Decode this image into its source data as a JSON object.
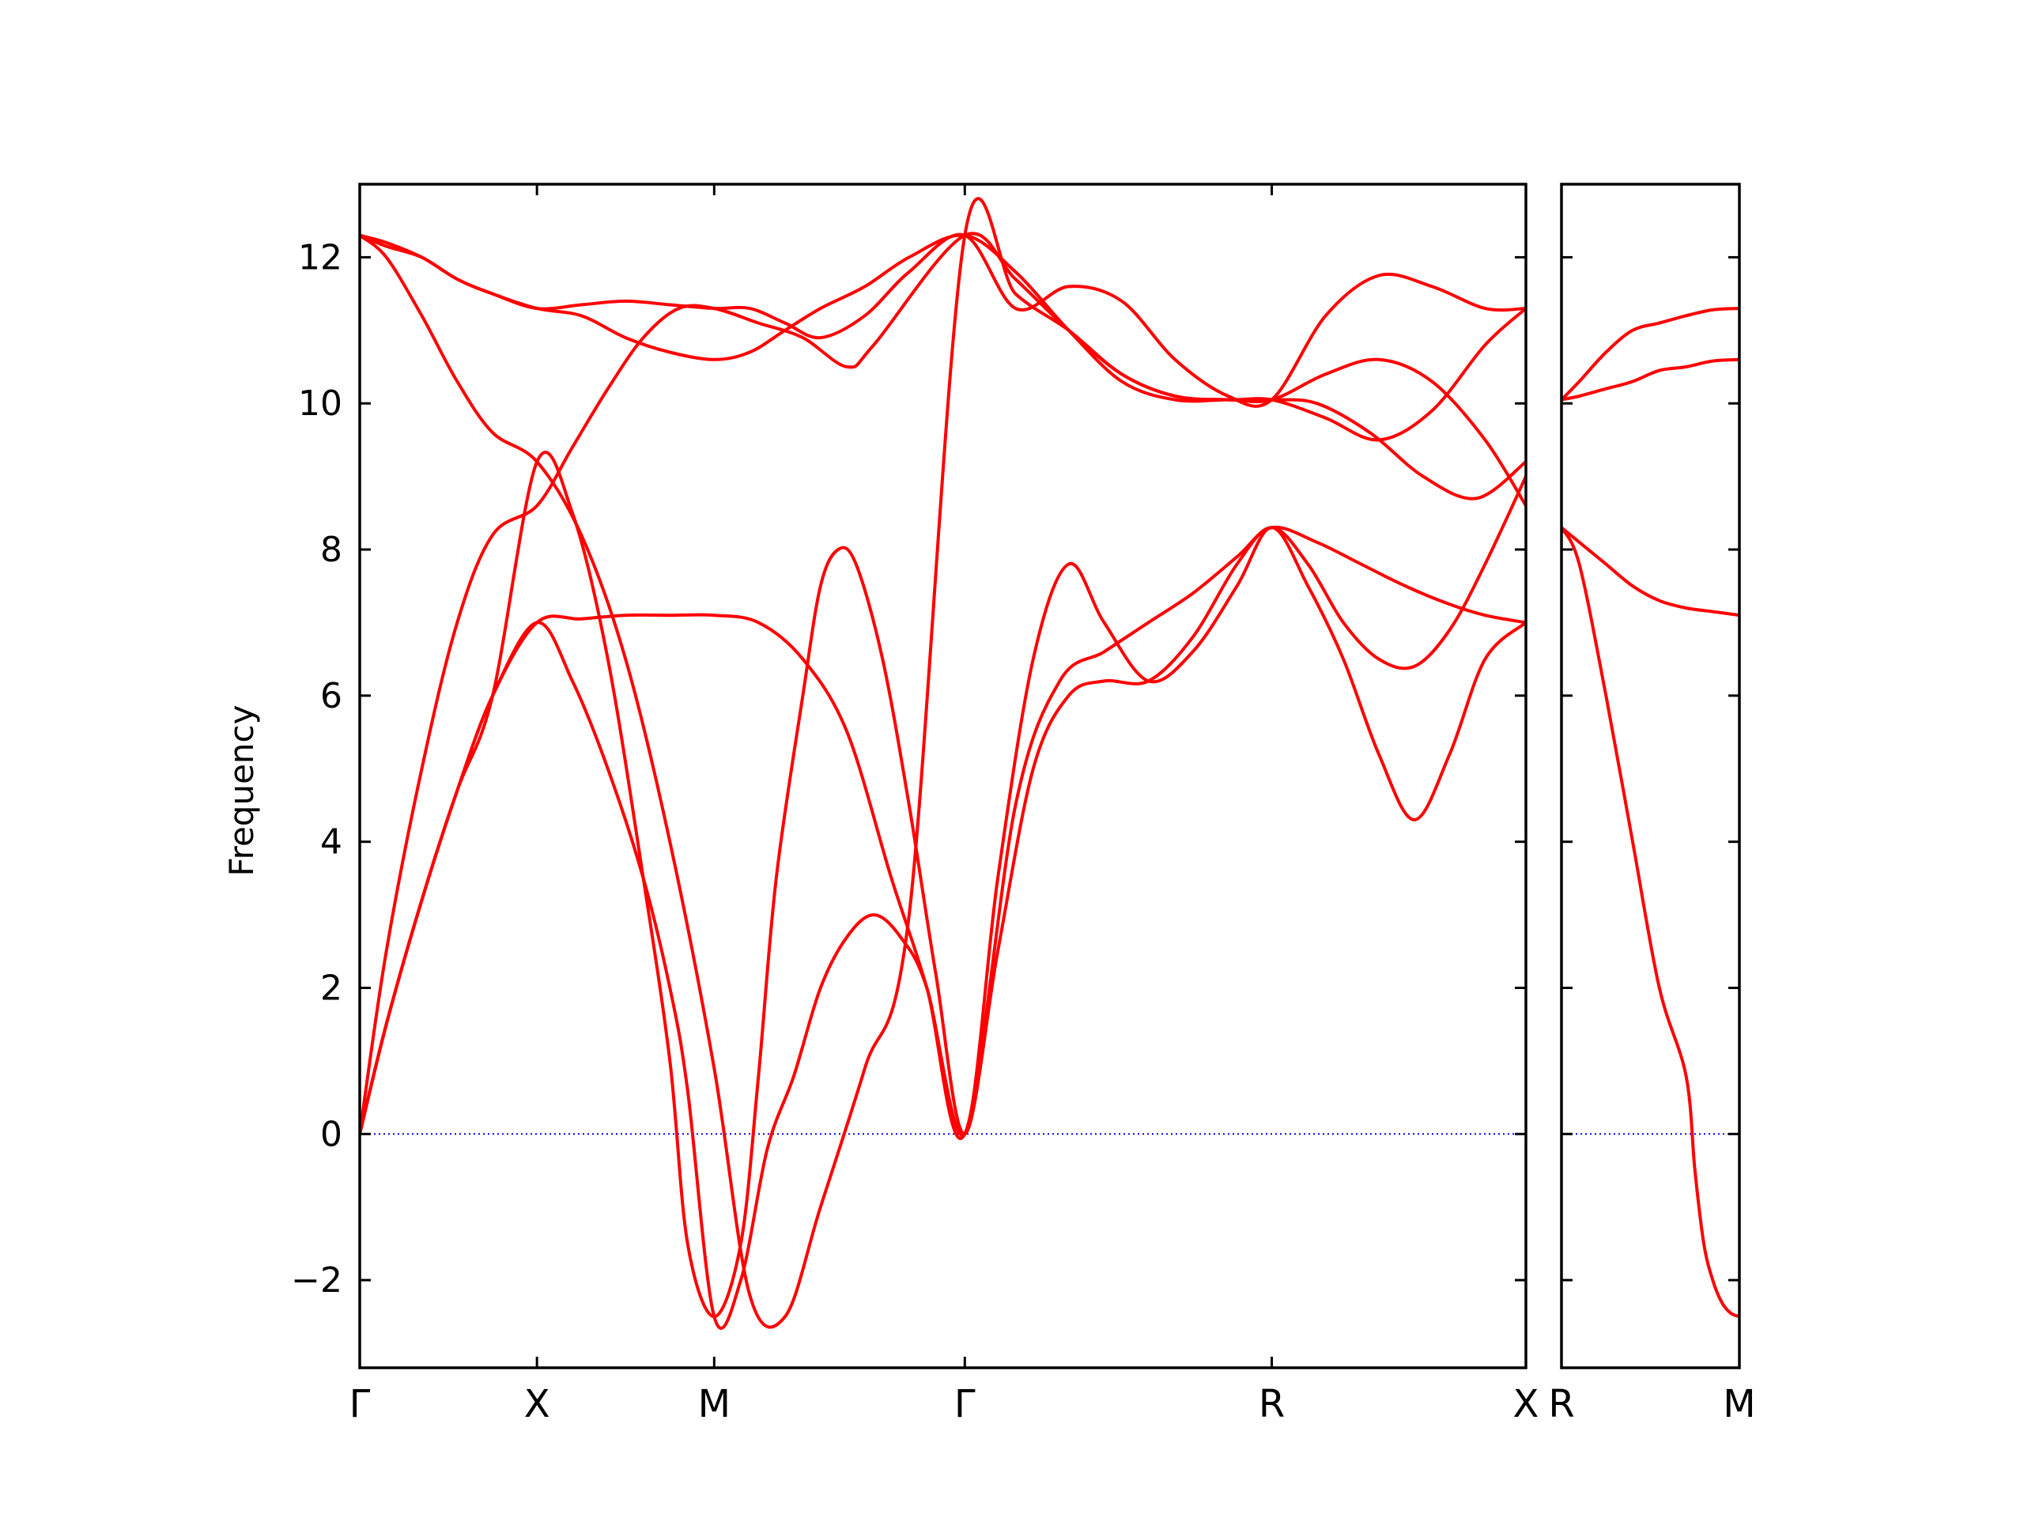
{
  "chart_data": {
    "type": "line",
    "ylabel": "Frequency",
    "ylim": [
      -3.2,
      13.0
    ],
    "yticks": [
      -2,
      0,
      2,
      4,
      6,
      8,
      10,
      12
    ],
    "ytick_labels": [
      "−2",
      "0",
      "2",
      "4",
      "6",
      "8",
      "10",
      "12"
    ],
    "band_color": "#ff0000",
    "zero_line_color": "#0000ff",
    "panels": [
      {
        "xlim": [
          0,
          6.58
        ],
        "xticks": [
          0,
          1.0,
          2.0,
          3.414,
          5.146,
          6.58
        ],
        "xtick_labels": [
          "Γ",
          "X",
          "M",
          "Γ",
          "R",
          "X"
        ],
        "series": [
          {
            "x": [
              0,
              0.15,
              0.35,
              0.55,
              0.75,
              1.0,
              1.25,
              1.5,
              1.75,
              2.0,
              2.2,
              2.4,
              2.6,
              2.85,
              3.1,
              3.414,
              3.7,
              4.0,
              4.3,
              4.6,
              4.9,
              5.146,
              5.45,
              5.75,
              6.05,
              6.35,
              6.58
            ],
            "y": [
              12.3,
              12.2,
              12.0,
              11.7,
              11.5,
              11.3,
              11.35,
              11.4,
              11.35,
              11.3,
              11.3,
              11.1,
              10.9,
              11.2,
              11.8,
              12.3,
              11.3,
              11.6,
              11.4,
              10.6,
              10.1,
              10.05,
              11.2,
              11.75,
              11.6,
              11.3,
              11.3
            ]
          },
          {
            "x": [
              0,
              0.15,
              0.35,
              0.55,
              0.75,
              1.0,
              1.25,
              1.5,
              1.75,
              2.0,
              2.2,
              2.4,
              2.6,
              2.85,
              3.1,
              3.414,
              3.7,
              4.0,
              4.3,
              4.6,
              4.9,
              5.146,
              5.45,
              5.75,
              6.05,
              6.35,
              6.58
            ],
            "y": [
              12.3,
              12.15,
              12.0,
              11.7,
              11.5,
              11.3,
              11.2,
              10.9,
              10.7,
              10.6,
              10.7,
              11.0,
              11.3,
              11.6,
              12.0,
              12.3,
              11.8,
              11.0,
              10.3,
              10.05,
              10.05,
              10.05,
              10.4,
              10.6,
              10.3,
              9.5,
              8.6
            ]
          },
          {
            "x": [
              0,
              0.15,
              0.35,
              0.55,
              0.75,
              1.0,
              1.25,
              1.5,
              1.75,
              2.0,
              2.2,
              2.4,
              2.6,
              2.85,
              3.1,
              3.414,
              3.7,
              4.0,
              4.3,
              4.6,
              4.9,
              5.146,
              5.45,
              5.75,
              6.05,
              6.35,
              6.58
            ],
            "y": [
              12.3,
              12.0,
              11.2,
              10.3,
              9.6,
              9.2,
              8.2,
              6.5,
              4.0,
              0.9,
              -2.2,
              -2.5,
              -1.0,
              0.9,
              3.0,
              12.3,
              11.5,
              11.0,
              10.4,
              10.1,
              10.05,
              10.05,
              9.8,
              9.5,
              9.9,
              10.8,
              11.3
            ]
          },
          {
            "x": [
              0,
              0.15,
              0.35,
              0.55,
              0.75,
              1.0,
              1.2,
              1.4,
              1.6,
              1.8,
              2.0,
              2.25,
              2.5,
              2.75,
              2.9,
              3.414,
              3.7,
              4.0,
              4.3,
              4.6,
              4.9,
              5.146,
              5.4,
              5.7,
              6.0,
              6.3,
              6.58
            ],
            "y": [
              0,
              2.5,
              5.0,
              7.0,
              8.2,
              8.6,
              9.4,
              10.2,
              10.9,
              11.3,
              11.3,
              11.1,
              10.9,
              10.5,
              10.8,
              12.3,
              11.7,
              11.0,
              10.4,
              10.1,
              10.05,
              10.05,
              10.0,
              9.6,
              9.0,
              8.7,
              9.2
            ]
          },
          {
            "x": [
              0,
              0.15,
              0.35,
              0.55,
              0.75,
              1.0,
              1.25,
              1.5,
              1.75,
              2.0,
              2.25,
              2.5,
              2.75,
              3.0,
              3.2,
              3.414,
              3.7,
              3.95,
              4.2,
              4.45,
              4.7,
              4.95,
              5.146,
              5.4,
              5.65,
              5.9,
              6.15,
              6.35,
              6.58
            ],
            "y": [
              0,
              1.5,
              3.2,
              4.7,
              6.0,
              7.0,
              7.05,
              7.1,
              7.1,
              7.1,
              7.0,
              6.5,
              5.5,
              3.5,
              2.0,
              0,
              4.5,
              6.2,
              6.6,
              7.0,
              7.4,
              7.9,
              8.3,
              8.1,
              7.8,
              7.5,
              7.25,
              7.1,
              7.0
            ]
          },
          {
            "x": [
              0,
              0.15,
              0.35,
              0.55,
              0.75,
              1.0,
              1.2,
              1.4,
              1.6,
              1.75,
              1.85,
              2.0,
              2.15,
              2.3,
              2.45,
              2.6,
              2.75,
              2.9,
              3.05,
              3.2,
              3.414,
              3.6,
              3.8,
              4.0,
              4.2,
              4.45,
              4.7,
              4.95,
              5.146,
              5.35,
              5.55,
              5.75,
              5.95,
              6.15,
              6.35,
              6.58
            ],
            "y": [
              0,
              1.5,
              3.2,
              4.7,
              6.0,
              7.0,
              6.2,
              5.0,
              3.5,
              2.0,
              0.6,
              -2.5,
              -2.0,
              -0.2,
              0.8,
              2.0,
              2.7,
              3.0,
              2.7,
              2.0,
              0,
              3.5,
              6.5,
              7.8,
              7.0,
              6.2,
              6.6,
              7.5,
              8.3,
              7.5,
              6.5,
              5.2,
              4.3,
              5.2,
              6.5,
              7.0
            ]
          },
          {
            "x": [
              0,
              0.15,
              0.35,
              0.55,
              0.75,
              1.0,
              1.2,
              1.4,
              1.6,
              1.75,
              1.85,
              2.0,
              2.15,
              2.25,
              2.35,
              2.5,
              2.6,
              2.7,
              2.8,
              2.95,
              3.1,
              3.25,
              3.414,
              3.6,
              3.8,
              4.0,
              4.2,
              4.45,
              4.7,
              4.95,
              5.146,
              5.35,
              5.55,
              5.75,
              5.95,
              6.15,
              6.35,
              6.58
            ],
            "y": [
              0,
              1.5,
              3.2,
              4.7,
              6.0,
              9.2,
              8.5,
              6.5,
              3.5,
              1.0,
              -1.5,
              -2.5,
              -1.5,
              0.8,
              3.5,
              6.0,
              7.5,
              8.0,
              7.8,
              6.5,
              4.5,
              2.2,
              0,
              2.5,
              5.0,
              6.0,
              6.2,
              6.2,
              6.8,
              7.8,
              8.3,
              7.8,
              7.0,
              6.5,
              6.4,
              6.9,
              7.8,
              9.0
            ]
          }
        ]
      },
      {
        "xlim": [
          0,
          1.0
        ],
        "xticks": [
          0,
          1.0
        ],
        "xtick_labels": [
          "R",
          "M"
        ],
        "series": [
          {
            "x": [
              0,
              0.1,
              0.25,
              0.4,
              0.55,
              0.7,
              0.85,
              1.0
            ],
            "y": [
              10.05,
              10.3,
              10.7,
              11.0,
              11.1,
              11.2,
              11.28,
              11.3
            ]
          },
          {
            "x": [
              0,
              0.1,
              0.25,
              0.4,
              0.55,
              0.7,
              0.85,
              1.0
            ],
            "y": [
              10.05,
              10.1,
              10.2,
              10.3,
              10.45,
              10.5,
              10.58,
              10.6
            ]
          },
          {
            "x": [
              0,
              0.1,
              0.25,
              0.4,
              0.55,
              0.7,
              0.85,
              1.0
            ],
            "y": [
              8.3,
              8.1,
              7.8,
              7.5,
              7.3,
              7.2,
              7.15,
              7.1
            ]
          },
          {
            "x": [
              0,
              0.1,
              0.25,
              0.4,
              0.55,
              0.7,
              0.75,
              0.8,
              0.85,
              0.9,
              0.95,
              1.0
            ],
            "y": [
              8.3,
              7.8,
              6.0,
              4.0,
              2.0,
              0.8,
              -0.5,
              -1.5,
              -2.0,
              -2.3,
              -2.45,
              -2.5
            ]
          }
        ]
      }
    ]
  }
}
